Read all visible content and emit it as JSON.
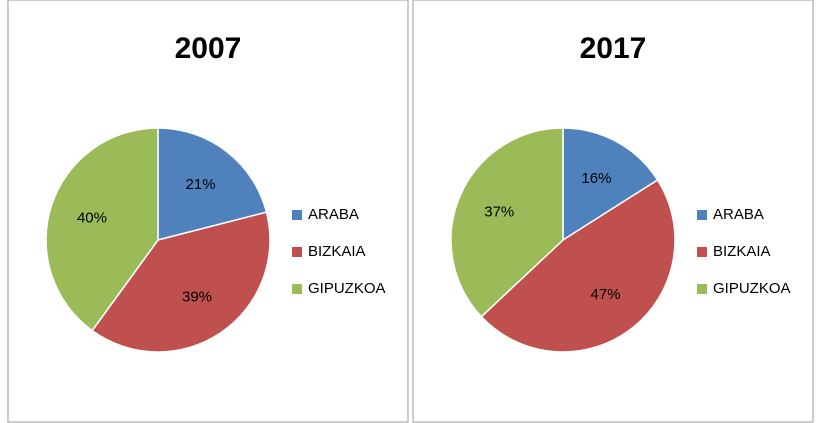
{
  "chart_data": [
    {
      "type": "pie",
      "title": "2007",
      "categories": [
        "ARABA",
        "BIZKAIA",
        "GIPUZKOA"
      ],
      "values": [
        21,
        39,
        40
      ],
      "value_labels": [
        "21%",
        "39%",
        "40%"
      ],
      "colors": [
        "#4f81bd",
        "#c0504d",
        "#9bbb59"
      ],
      "legend": "right"
    },
    {
      "type": "pie",
      "title": "2017",
      "categories": [
        "ARABA",
        "BIZKAIA",
        "GIPUZKOA"
      ],
      "values": [
        16,
        47,
        37
      ],
      "value_labels": [
        "16%",
        "47%",
        "37%"
      ],
      "colors": [
        "#4f81bd",
        "#c0504d",
        "#9bbb59"
      ],
      "legend": "right"
    }
  ]
}
